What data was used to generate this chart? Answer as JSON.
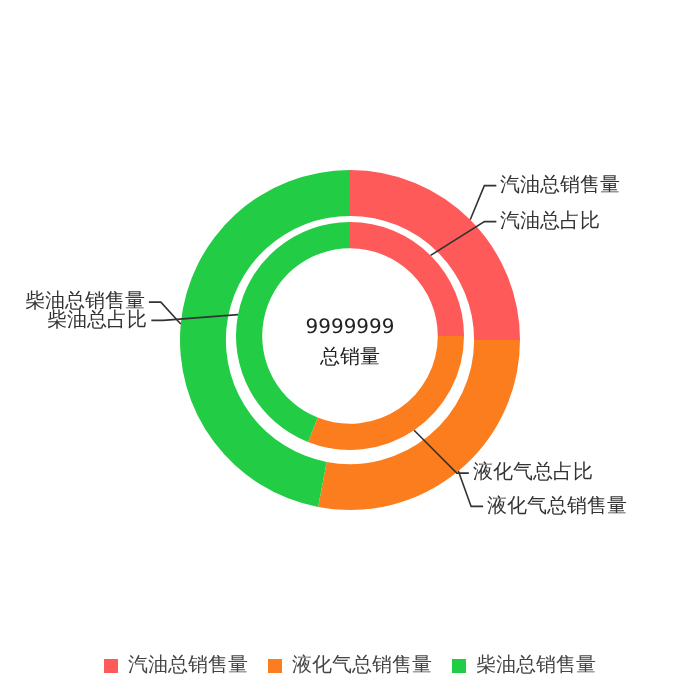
{
  "chart_data": [
    {
      "type": "donut",
      "title": "9999999",
      "subtitle": "总销量",
      "categories": [
        "汽油总销售量",
        "液化气总销售量",
        "柴油总销售量"
      ],
      "values": [
        25,
        28,
        47
      ],
      "colors": [
        "#ff5a5a",
        "#fc7d1e",
        "#22cc44"
      ],
      "legend": "bottom"
    },
    {
      "type": "donut",
      "categories": [
        "汽油总占比",
        "液化气总占比",
        "柴油总占比"
      ],
      "values": [
        25,
        31,
        44
      ],
      "colors": [
        "#ff5a5a",
        "#fc7d1e",
        "#22cc44"
      ]
    }
  ]
}
